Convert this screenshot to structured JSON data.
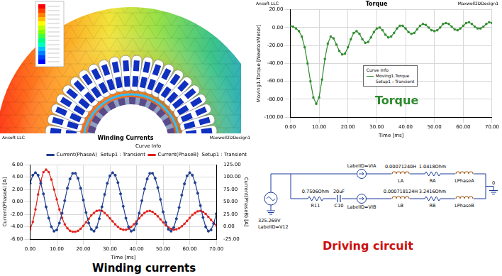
{
  "chart_data": [
    {
      "type": "line",
      "title": "Torque",
      "annotations": [
        "Ansoft LLC",
        "Maxwell2DDesign1"
      ],
      "caption": "Torque",
      "x_label": "Time [ms]",
      "y_label": "Moving1.Torque [NewtonMeter]",
      "legend": "center",
      "legend_title": "Curve Info",
      "grid": true,
      "x": [
        0,
        1,
        2,
        3,
        4,
        5,
        6,
        7,
        8,
        9,
        10,
        11,
        12,
        13,
        14,
        15,
        16,
        17,
        18,
        19,
        20,
        21,
        22,
        23,
        24,
        25,
        26,
        27,
        28,
        29,
        30,
        31,
        32,
        33,
        34,
        35,
        36,
        37,
        38,
        39,
        40,
        41,
        42,
        43,
        44,
        45,
        46,
        47,
        48,
        49,
        50,
        51,
        52,
        53,
        54,
        55,
        56,
        57,
        58,
        59,
        60,
        61,
        62,
        63,
        64,
        65,
        66,
        67,
        68,
        69,
        70
      ],
      "xlim": [
        0,
        70
      ],
      "xticks": [
        {
          "value": 0,
          "label": "0.00"
        },
        {
          "value": 10,
          "label": "10.00"
        },
        {
          "value": 20,
          "label": "20.00"
        },
        {
          "value": 30,
          "label": "30.00"
        },
        {
          "value": 40,
          "label": "40.00"
        },
        {
          "value": 50,
          "label": "50.00"
        },
        {
          "value": 60,
          "label": "60.00"
        },
        {
          "value": 70,
          "label": "70.00"
        }
      ],
      "ylim": [
        -100,
        20
      ],
      "yticks": [
        {
          "value": -100,
          "label": "-100.00"
        },
        {
          "value": -80,
          "label": "-80.00"
        },
        {
          "value": -60,
          "label": "-60.00"
        },
        {
          "value": -40,
          "label": "-40.00"
        },
        {
          "value": -20,
          "label": "-20.00"
        },
        {
          "value": 0,
          "label": "0.00"
        },
        {
          "value": 20,
          "label": "20.00"
        }
      ],
      "series": [
        {
          "name": "Moving1.Torque",
          "setup": "Setup1 : Transient",
          "color": "#2e8b2e",
          "marker": "square",
          "line_style": "solid",
          "values": [
            2,
            1,
            -1,
            -4,
            -10,
            -22,
            -40,
            -60,
            -78,
            -85,
            -78,
            -58,
            -35,
            -18,
            -10,
            -12,
            -19,
            -26,
            -30,
            -29,
            -22,
            -13,
            -6,
            -4,
            -7,
            -13,
            -17,
            -16,
            -11,
            -5,
            -1,
            0,
            -3,
            -8,
            -11,
            -10,
            -6,
            -1,
            2,
            2,
            -1,
            -5,
            -7,
            -6,
            -2,
            2,
            4,
            3,
            0,
            -3,
            -4,
            -3,
            0,
            4,
            5,
            4,
            1,
            -2,
            -3,
            -1,
            2,
            5,
            6,
            4,
            1,
            -1,
            -1,
            1,
            4,
            6,
            5
          ]
        }
      ]
    },
    {
      "type": "line",
      "title": "Winding Currents",
      "annotations": [
        "Ansoft LLC",
        "Maxwell2DDesign1"
      ],
      "caption": "Winding currents",
      "x_label": "Time [ms]",
      "y_label": "Current(PhaseA) [A]",
      "y2_label": "Current(PhaseB) [A]",
      "legend": "upper right",
      "legend_title": "Curve Info",
      "grid": true,
      "x": [
        0,
        1,
        2,
        3,
        4,
        5,
        6,
        7,
        8,
        9,
        10,
        11,
        12,
        13,
        14,
        15,
        16,
        17,
        18,
        19,
        20,
        21,
        22,
        23,
        24,
        25,
        26,
        27,
        28,
        29,
        30,
        31,
        32,
        33,
        34,
        35,
        36,
        37,
        38,
        39,
        40,
        41,
        42,
        43,
        44,
        45,
        46,
        47,
        48,
        49,
        50,
        51,
        52,
        53,
        54,
        55,
        56,
        57,
        58,
        59,
        60,
        61,
        62,
        63,
        64,
        65,
        66,
        67,
        68,
        69,
        70
      ],
      "xlim": [
        0,
        70
      ],
      "xticks": [
        {
          "value": 0,
          "label": "0.00"
        },
        {
          "value": 10,
          "label": "10.00"
        },
        {
          "value": 20,
          "label": "20.00"
        },
        {
          "value": 30,
          "label": "30.00"
        },
        {
          "value": 40,
          "label": "40.00"
        },
        {
          "value": 50,
          "label": "50.00"
        },
        {
          "value": 60,
          "label": "60.00"
        },
        {
          "value": 70,
          "label": "70.00"
        }
      ],
      "ylim": [
        -6,
        6
      ],
      "yticks": [
        {
          "value": -6,
          "label": "-6.00"
        },
        {
          "value": -4,
          "label": "-4.00"
        },
        {
          "value": -2,
          "label": "-2.00"
        },
        {
          "value": 0,
          "label": "0.00"
        },
        {
          "value": 2,
          "label": "2.00"
        },
        {
          "value": 4,
          "label": "4.00"
        },
        {
          "value": 6,
          "label": "6.00"
        }
      ],
      "y2lim": [
        -25,
        125
      ],
      "y2ticks": [
        {
          "value": -25,
          "label": "-25.00"
        },
        {
          "value": 0,
          "label": "0.00"
        },
        {
          "value": 25,
          "label": "25.00"
        },
        {
          "value": 50,
          "label": "50.00"
        },
        {
          "value": 75,
          "label": "75.00"
        },
        {
          "value": 100,
          "label": "100.00"
        },
        {
          "value": 125,
          "label": "125.00"
        }
      ],
      "series": [
        {
          "name": "Current(PhaseA)",
          "setup": "Setup1 : Transient",
          "color": "#1f3f8f",
          "marker": "circle",
          "line_style": "solid",
          "axis": "y",
          "values": [
            3.0,
            4.3,
            4.7,
            4.3,
            3.0,
            1.3,
            -0.8,
            -2.6,
            -4.0,
            -4.7,
            -4.5,
            -3.4,
            -1.8,
            0.2,
            2.2,
            3.7,
            4.6,
            4.6,
            3.8,
            2.2,
            0.3,
            -1.7,
            -3.4,
            -4.4,
            -4.7,
            -4.1,
            -2.7,
            -0.8,
            1.2,
            3.0,
            4.2,
            4.7,
            4.3,
            3.1,
            1.3,
            -0.7,
            -2.6,
            -4.0,
            -4.7,
            -4.5,
            -3.5,
            -1.8,
            0.2,
            2.1,
            3.7,
            4.6,
            4.6,
            3.8,
            2.3,
            0.4,
            -1.6,
            -3.3,
            -4.4,
            -4.7,
            -4.1,
            -2.7,
            -0.9,
            1.1,
            2.9,
            4.2,
            4.7,
            4.3,
            3.1,
            1.4,
            -0.6,
            -2.5,
            -4.0,
            -4.7,
            -4.5,
            -3.5,
            -1.9
          ]
        },
        {
          "name": "Current(PhaseB)",
          "setup": "Setup1 : Transient",
          "color": "#e0201a",
          "marker": "square",
          "line_style": "solid",
          "axis": "y2",
          "values": [
            -5,
            10,
            35,
            65,
            92,
            110,
            115,
            110,
            95,
            75,
            55,
            35,
            18,
            5,
            -3,
            -8,
            -10,
            -10,
            -8,
            -4,
            2,
            9,
            16,
            23,
            28,
            32,
            33,
            32,
            28,
            23,
            17,
            11,
            5,
            0,
            -4,
            -6,
            -6,
            -4,
            0,
            5,
            11,
            17,
            23,
            28,
            31,
            32,
            30,
            26,
            21,
            15,
            9,
            3,
            -1,
            -4,
            -6,
            -5,
            -3,
            1,
            6,
            12,
            18,
            24,
            28,
            31,
            32,
            30,
            26,
            20,
            14,
            8,
            3
          ]
        }
      ]
    }
  ],
  "circuit": {
    "source": {
      "value": "325.269V",
      "label": "LabelID=V12"
    },
    "branch_a": [
      {
        "type": "ammeter",
        "label": "LabelID=VIA"
      },
      {
        "type": "inductor",
        "value": "0.00071240H",
        "name": "LA"
      },
      {
        "type": "resistor",
        "value": "1.0418Ohm",
        "name": "RA"
      },
      {
        "type": "inductor",
        "name": "LPhaseA"
      }
    ],
    "branch_b": [
      {
        "type": "resistor",
        "value": "0.7506Ohm",
        "name": "R11"
      },
      {
        "type": "capacitor",
        "value": "20uF",
        "name": "C10"
      },
      {
        "type": "ammeter",
        "label": "LabelID=VIB"
      },
      {
        "type": "inductor",
        "value": "0.000718124H",
        "name": "LB"
      },
      {
        "type": "resistor",
        "value": "3.2416Ohm",
        "name": "RB"
      },
      {
        "type": "inductor",
        "name": "LPhaseB"
      }
    ],
    "ground": "0",
    "caption": "Driving circuit"
  }
}
